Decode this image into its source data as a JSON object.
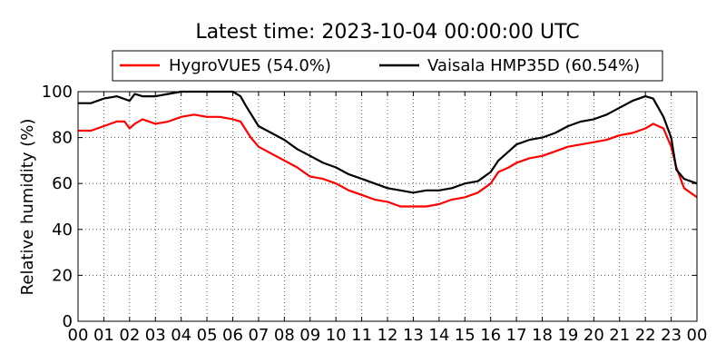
{
  "chart_data": {
    "type": "line",
    "title": "Latest time: 2023-10-04 00:00:00 UTC",
    "xlabel": "",
    "ylabel": "Relative humidity (%)",
    "xlim": [
      0,
      24
    ],
    "ylim": [
      0,
      100
    ],
    "x_ticks": [
      "00",
      "01",
      "02",
      "03",
      "04",
      "05",
      "06",
      "07",
      "08",
      "09",
      "10",
      "11",
      "12",
      "13",
      "14",
      "15",
      "16",
      "17",
      "18",
      "19",
      "20",
      "21",
      "22",
      "23",
      "00"
    ],
    "y_ticks": [
      0,
      20,
      40,
      60,
      80,
      100
    ],
    "grid": true,
    "legend_position": "top",
    "x_unit": "hour",
    "series": [
      {
        "name": "HygroVUE5 (54.0%)",
        "color": "#ff0000",
        "x": [
          0,
          0.5,
          1,
          1.5,
          1.8,
          2,
          2.2,
          2.5,
          3,
          3.5,
          4,
          4.5,
          5,
          5.5,
          6,
          6.3,
          6.7,
          7,
          7.5,
          8,
          8.5,
          9,
          9.5,
          10,
          10.5,
          11,
          11.5,
          12,
          12.5,
          13,
          13.5,
          14,
          14.5,
          15,
          15.5,
          16,
          16.3,
          16.7,
          17,
          17.5,
          18,
          18.5,
          19,
          19.5,
          20,
          20.5,
          21,
          21.5,
          22,
          22.3,
          22.7,
          23,
          23.2,
          23.5,
          24
        ],
        "values": [
          83,
          83,
          85,
          87,
          87,
          84,
          86,
          88,
          86,
          87,
          89,
          90,
          89,
          89,
          88,
          87,
          80,
          76,
          73,
          70,
          67,
          63,
          62,
          60,
          57,
          55,
          53,
          52,
          50,
          50,
          50,
          51,
          53,
          54,
          56,
          60,
          65,
          67,
          69,
          71,
          72,
          74,
          76,
          77,
          78,
          79,
          81,
          82,
          84,
          86,
          84,
          76,
          67,
          58,
          54
        ]
      },
      {
        "name": "Vaisala HMP35D (60.54%)",
        "color": "#000000",
        "x": [
          0,
          0.5,
          1,
          1.5,
          2,
          2.2,
          2.5,
          3,
          3.5,
          4,
          4.5,
          5,
          5.5,
          6,
          6.3,
          6.5,
          7,
          7.5,
          8,
          8.5,
          9,
          9.5,
          10,
          10.5,
          11,
          11.5,
          12,
          12.5,
          13,
          13.5,
          14,
          14.5,
          15,
          15.5,
          16,
          16.3,
          16.7,
          17,
          17.5,
          18,
          18.5,
          19,
          19.5,
          20,
          20.5,
          21,
          21.5,
          22,
          22.3,
          22.7,
          23,
          23.2,
          23.5,
          24
        ],
        "values": [
          95,
          95,
          97,
          98,
          96,
          99,
          98,
          98,
          99,
          100,
          100,
          100,
          100,
          100,
          98,
          94,
          85,
          82,
          79,
          75,
          72,
          69,
          67,
          64,
          62,
          60,
          58,
          57,
          56,
          57,
          57,
          58,
          60,
          61,
          65,
          70,
          74,
          77,
          79,
          80,
          82,
          85,
          87,
          88,
          90,
          93,
          96,
          98,
          97,
          89,
          80,
          66,
          62,
          60
        ]
      }
    ]
  }
}
